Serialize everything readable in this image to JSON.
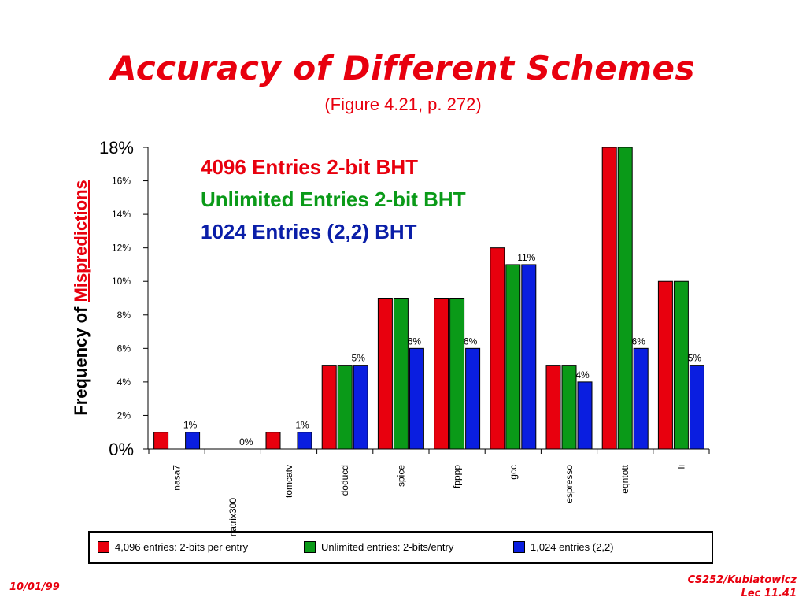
{
  "slide": {
    "title": "Accuracy of Different Schemes",
    "subtitle": "(Figure 4.21, p. 272)",
    "ylabel_prefix": "Frequency of ",
    "ylabel_emph": "Mispredictions",
    "footer_date": "10/01/99",
    "footer_course": "CS252/Kubiatowicz",
    "footer_lecture": "Lec 11.41"
  },
  "annotations": [
    {
      "text": "4096 Entries 2-bit BHT",
      "color": "#e8000e"
    },
    {
      "text": "Unlimited Entries 2-bit BHT",
      "color": "#0a9a18"
    },
    {
      "text": "1024 Entries (2,2) BHT",
      "color": "#0a1ea8"
    }
  ],
  "chart_data": {
    "type": "bar",
    "categories": [
      "nasa7",
      "matrix300",
      "tomcatv",
      "doducd",
      "spice",
      "fpppp",
      "gcc",
      "espresso",
      "eqntott",
      "li"
    ],
    "series": [
      {
        "name": "4,096 entries: 2-bits per entry",
        "color": "#e8000e",
        "values": [
          1,
          0,
          1,
          5,
          9,
          9,
          12,
          5,
          18,
          10
        ]
      },
      {
        "name": "Unlimited entries: 2-bits/entry",
        "color": "#0a9a18",
        "values": [
          0,
          0,
          0,
          5,
          9,
          9,
          11,
          5,
          18,
          10
        ]
      },
      {
        "name": "1,024 entries (2,2)",
        "color": "#0a1ee0",
        "values": [
          1,
          0,
          1,
          5,
          6,
          6,
          11,
          4,
          6,
          5
        ]
      }
    ],
    "data_labels": [
      "1%",
      "0%",
      "1%",
      "5%",
      "6%",
      "6%",
      "11%",
      "4%",
      "6%",
      "5%"
    ],
    "yticks": [
      "0%",
      "2%",
      "4%",
      "6%",
      "8%",
      "10%",
      "12%",
      "14%",
      "16%",
      "18%"
    ],
    "ylim": [
      0,
      18
    ],
    "grid": false,
    "legend_position": "bottom"
  }
}
